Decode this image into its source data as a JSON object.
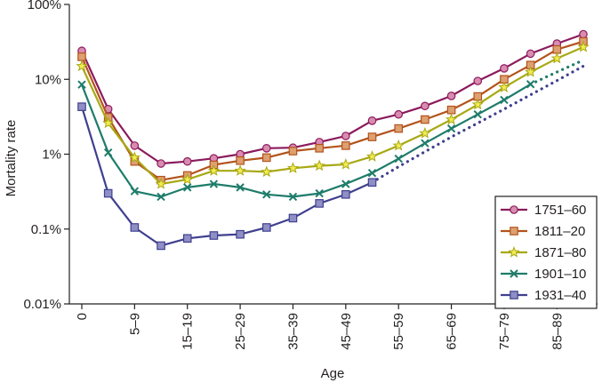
{
  "chart_data": {
    "type": "line",
    "ylabel": "Mortality rate",
    "xlabel": "Age",
    "yscale": "log",
    "ylim": [
      0.01,
      100
    ],
    "yticks": [
      {
        "value": 100,
        "label": "100%"
      },
      {
        "value": 10,
        "label": "10%"
      },
      {
        "value": 1,
        "label": "1%"
      },
      {
        "value": 0.1,
        "label": "0.1%"
      },
      {
        "value": 0.01,
        "label": "0.01%"
      }
    ],
    "x_index_range": [
      0,
      19
    ],
    "xticks": [
      {
        "index": 0,
        "label": "0"
      },
      {
        "index": 2,
        "label": "5–9"
      },
      {
        "index": 4,
        "label": "15–19"
      },
      {
        "index": 6,
        "label": "25–29"
      },
      {
        "index": 8,
        "label": "35–39"
      },
      {
        "index": 10,
        "label": "45–49"
      },
      {
        "index": 12,
        "label": "55–59"
      },
      {
        "index": 14,
        "label": "65–69"
      },
      {
        "index": 16,
        "label": "75–79"
      },
      {
        "index": 18,
        "label": "85–89"
      }
    ],
    "legend_position": "bottom-right",
    "series": [
      {
        "name": "1751–60",
        "color": "#8b1a5c",
        "fill": "#d98cb0",
        "marker": "circle",
        "x": [
          0,
          1,
          2,
          3,
          4,
          5,
          6,
          7,
          8,
          9,
          10,
          11,
          12,
          13,
          14,
          15,
          16,
          17,
          18,
          19
        ],
        "values": [
          24,
          4,
          1.3,
          0.75,
          0.8,
          0.88,
          1.0,
          1.2,
          1.22,
          1.45,
          1.75,
          2.8,
          3.4,
          4.4,
          6.0,
          9.5,
          14,
          22,
          30,
          40
        ],
        "dotted": null
      },
      {
        "name": "1811–20",
        "color": "#b3531c",
        "fill": "#dda070",
        "marker": "square",
        "x": [
          0,
          1,
          2,
          3,
          4,
          5,
          6,
          7,
          8,
          9,
          10,
          11,
          12,
          13,
          14,
          15,
          16,
          17,
          18,
          19
        ],
        "values": [
          20,
          3.1,
          0.8,
          0.45,
          0.52,
          0.72,
          0.82,
          0.9,
          1.1,
          1.2,
          1.3,
          1.7,
          2.2,
          2.9,
          3.9,
          5.9,
          10,
          15.5,
          25,
          32
        ],
        "dotted": null
      },
      {
        "name": "1871–80",
        "color": "#a8a814",
        "fill": "#f2ec52",
        "marker": "star",
        "x": [
          0,
          1,
          2,
          3,
          4,
          5,
          6,
          7,
          8,
          9,
          10,
          11,
          12,
          13,
          14,
          15,
          16,
          17,
          18,
          19
        ],
        "values": [
          15,
          2.6,
          0.9,
          0.4,
          0.46,
          0.6,
          0.6,
          0.58,
          0.65,
          0.7,
          0.73,
          0.93,
          1.3,
          1.9,
          2.9,
          4.6,
          7.8,
          12.5,
          19,
          27
        ],
        "dotted": null
      },
      {
        "name": "1901–10",
        "color": "#1e7c6a",
        "fill": "#1e7c6a",
        "marker": "x",
        "x": [
          0,
          1,
          2,
          3,
          4,
          5,
          6,
          7,
          8,
          9,
          10,
          11,
          12,
          13,
          14,
          15,
          16,
          17
        ],
        "values": [
          8.5,
          1.05,
          0.32,
          0.27,
          0.36,
          0.4,
          0.36,
          0.29,
          0.27,
          0.3,
          0.4,
          0.56,
          0.87,
          1.4,
          2.2,
          3.4,
          5.3,
          8.6
        ],
        "dotted": {
          "x": [
            17,
            18,
            19
          ],
          "values": [
            8.6,
            12.5,
            18
          ]
        }
      },
      {
        "name": "1931–40",
        "color": "#3f3f8f",
        "fill": "#8f8fc6",
        "marker": "square",
        "x": [
          0,
          1,
          2,
          3,
          4,
          5,
          6,
          7,
          8,
          9,
          10,
          11
        ],
        "values": [
          4.3,
          0.3,
          0.105,
          0.06,
          0.075,
          0.082,
          0.085,
          0.105,
          0.14,
          0.22,
          0.29,
          0.42
        ],
        "dotted": {
          "x": [
            11,
            12,
            13,
            14,
            15,
            16,
            17,
            18,
            19
          ],
          "values": [
            0.42,
            0.68,
            1.08,
            1.7,
            2.6,
            4.0,
            6.2,
            9.6,
            15
          ]
        }
      }
    ]
  }
}
